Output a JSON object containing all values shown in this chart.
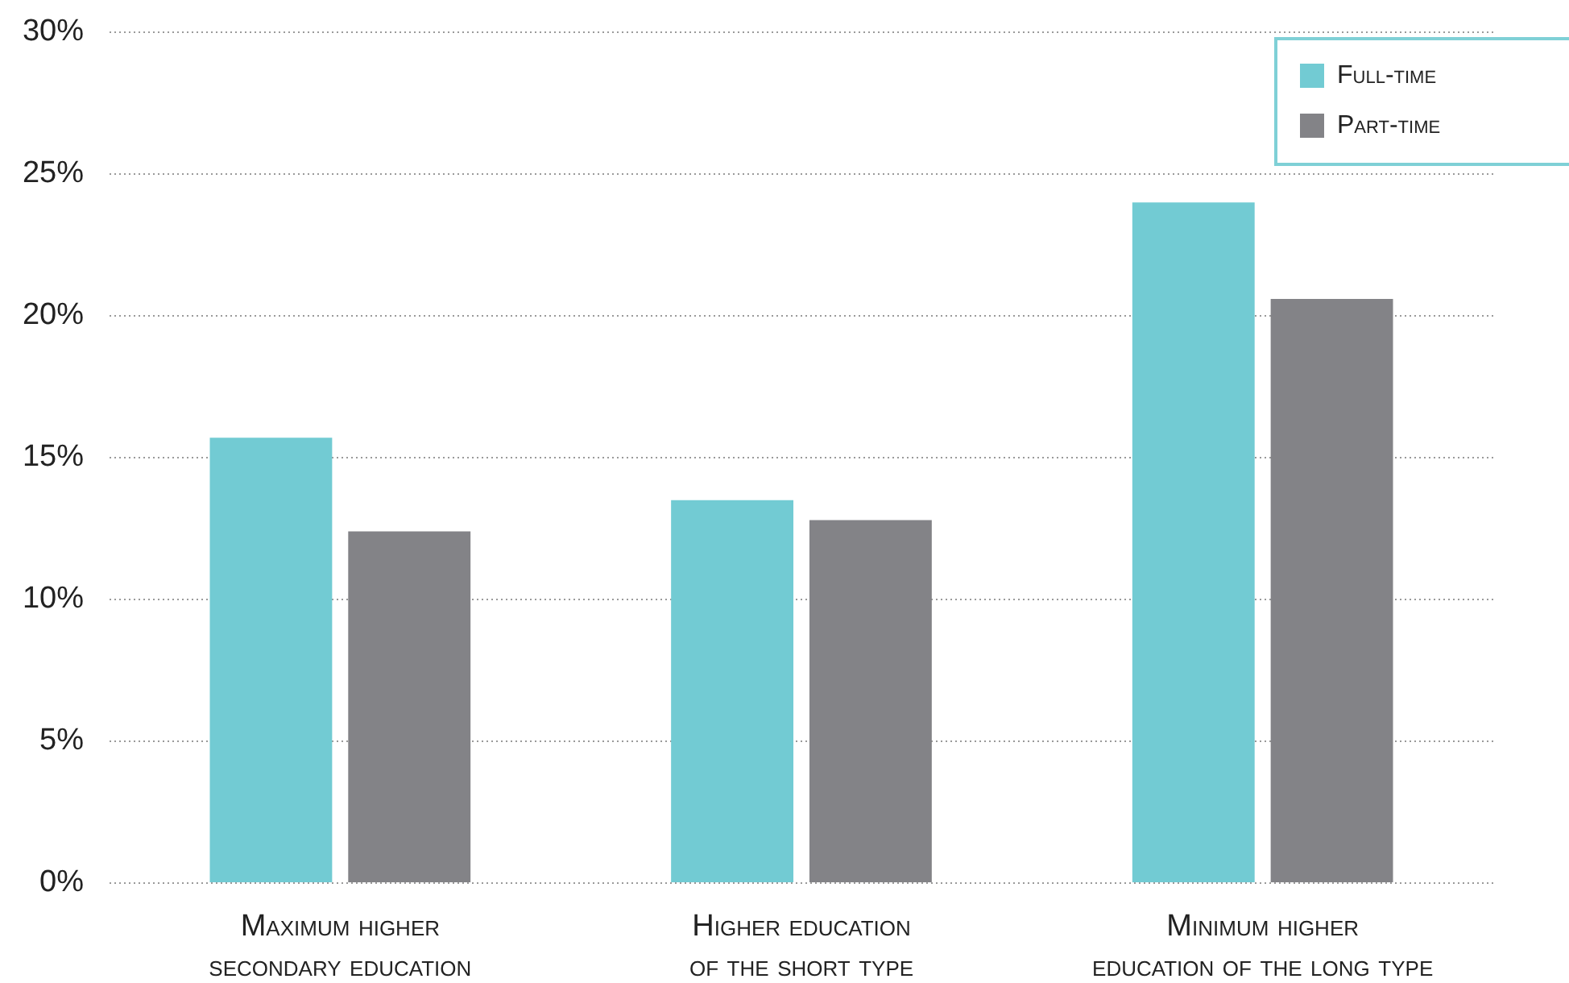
{
  "chart_data": {
    "type": "bar",
    "categories": [
      "Maximum higher secondary education",
      "Higher education of the short type",
      "Minimum higher education of the long type"
    ],
    "series": [
      {
        "name": "Full-time",
        "color": "#72cbd3",
        "values": [
          15.7,
          13.5,
          24.0
        ]
      },
      {
        "name": "Part-time",
        "color": "#838387",
        "values": [
          12.4,
          12.8,
          20.6
        ]
      }
    ],
    "ylim": [
      0,
      30
    ],
    "yticks": [
      {
        "value": 0,
        "label": "0%"
      },
      {
        "value": 5,
        "label": "5%"
      },
      {
        "value": 10,
        "label": "10%"
      },
      {
        "value": 15,
        "label": "15%"
      },
      {
        "value": 20,
        "label": "20%"
      },
      {
        "value": 25,
        "label": "25%"
      },
      {
        "value": 30,
        "label": "30%"
      }
    ],
    "grid": "y",
    "legend": "top right"
  }
}
